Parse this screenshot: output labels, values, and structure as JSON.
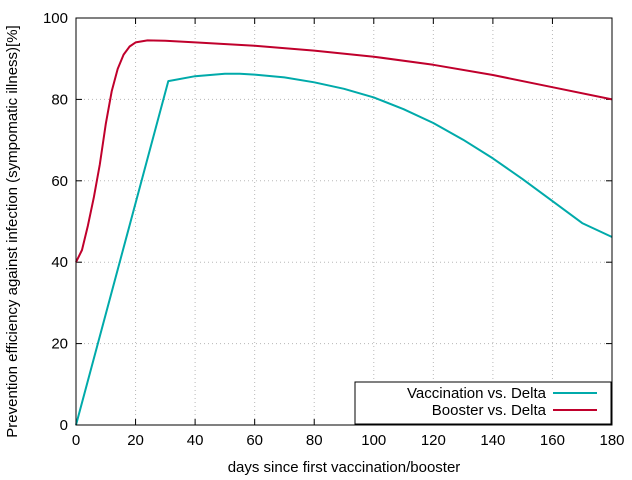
{
  "chart_data": {
    "type": "line",
    "xlabel": "days since first vaccination/booster",
    "ylabel": "Prevention efficiency against infection (sympomatic illness)[%]",
    "xlim": [
      0,
      180
    ],
    "ylim": [
      0,
      100
    ],
    "x_ticks": [
      0,
      20,
      40,
      60,
      80,
      100,
      120,
      140,
      160,
      180
    ],
    "y_ticks": [
      0,
      20,
      40,
      60,
      80,
      100
    ],
    "grid": true,
    "legend_position": "bottom-right",
    "series": [
      {
        "name": "Vaccination vs. Delta",
        "color": "#00aaaa",
        "points": [
          [
            0,
            0
          ],
          [
            31,
            84.5
          ],
          [
            40,
            85.7
          ],
          [
            50,
            86.3
          ],
          [
            55,
            86.3
          ],
          [
            60,
            86.1
          ],
          [
            70,
            85.4
          ],
          [
            80,
            84.2
          ],
          [
            90,
            82.6
          ],
          [
            100,
            80.5
          ],
          [
            110,
            77.6
          ],
          [
            120,
            74.2
          ],
          [
            130,
            70.1
          ],
          [
            140,
            65.5
          ],
          [
            150,
            60.4
          ],
          [
            160,
            55.0
          ],
          [
            170,
            49.6
          ],
          [
            180,
            46.2
          ]
        ]
      },
      {
        "name": "Booster vs. Delta",
        "color": "#c0002c",
        "points": [
          [
            0,
            40
          ],
          [
            2,
            43
          ],
          [
            4,
            49
          ],
          [
            6,
            56
          ],
          [
            8,
            64
          ],
          [
            10,
            74
          ],
          [
            12,
            82
          ],
          [
            14,
            87.5
          ],
          [
            16,
            91
          ],
          [
            18,
            93
          ],
          [
            20,
            94
          ],
          [
            24,
            94.5
          ],
          [
            30,
            94.4
          ],
          [
            40,
            94
          ],
          [
            60,
            93.2
          ],
          [
            80,
            92
          ],
          [
            100,
            90.5
          ],
          [
            120,
            88.5
          ],
          [
            140,
            86
          ],
          [
            160,
            83
          ],
          [
            180,
            80
          ]
        ]
      }
    ]
  }
}
